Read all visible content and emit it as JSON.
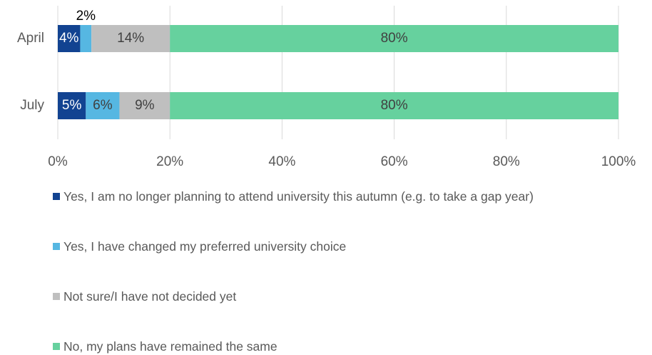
{
  "chart_data": {
    "type": "stacked_barh",
    "categories": [
      "April",
      "July"
    ],
    "series": [
      {
        "name": "Yes, I am no longer planning to attend university this autumn (e.g. to take a gap year)",
        "color": "#124391",
        "values": [
          4,
          5
        ],
        "value_labels": [
          "4%",
          "5%"
        ]
      },
      {
        "name": "Yes, I have changed my preferred university choice",
        "color": "#56b7e2",
        "values": [
          2,
          6
        ],
        "value_labels": [
          "2%",
          "6%"
        ]
      },
      {
        "name": "Not sure/I have not decided yet",
        "color": "#bfbfbf",
        "values": [
          14,
          9
        ],
        "value_labels": [
          "14%",
          "9%"
        ]
      },
      {
        "name": "No, my plans have remained the same",
        "color": "#66d19e",
        "values": [
          80,
          80
        ],
        "value_labels": [
          "80%",
          "80%"
        ]
      }
    ],
    "xlim": [
      0,
      100
    ],
    "xticks": [
      {
        "value": 0,
        "label": "0%"
      },
      {
        "value": 20,
        "label": "20%"
      },
      {
        "value": 40,
        "label": "40%"
      },
      {
        "value": 60,
        "label": "60%"
      },
      {
        "value": 80,
        "label": "80%"
      },
      {
        "value": 100,
        "label": "100%"
      }
    ],
    "grid": true
  }
}
